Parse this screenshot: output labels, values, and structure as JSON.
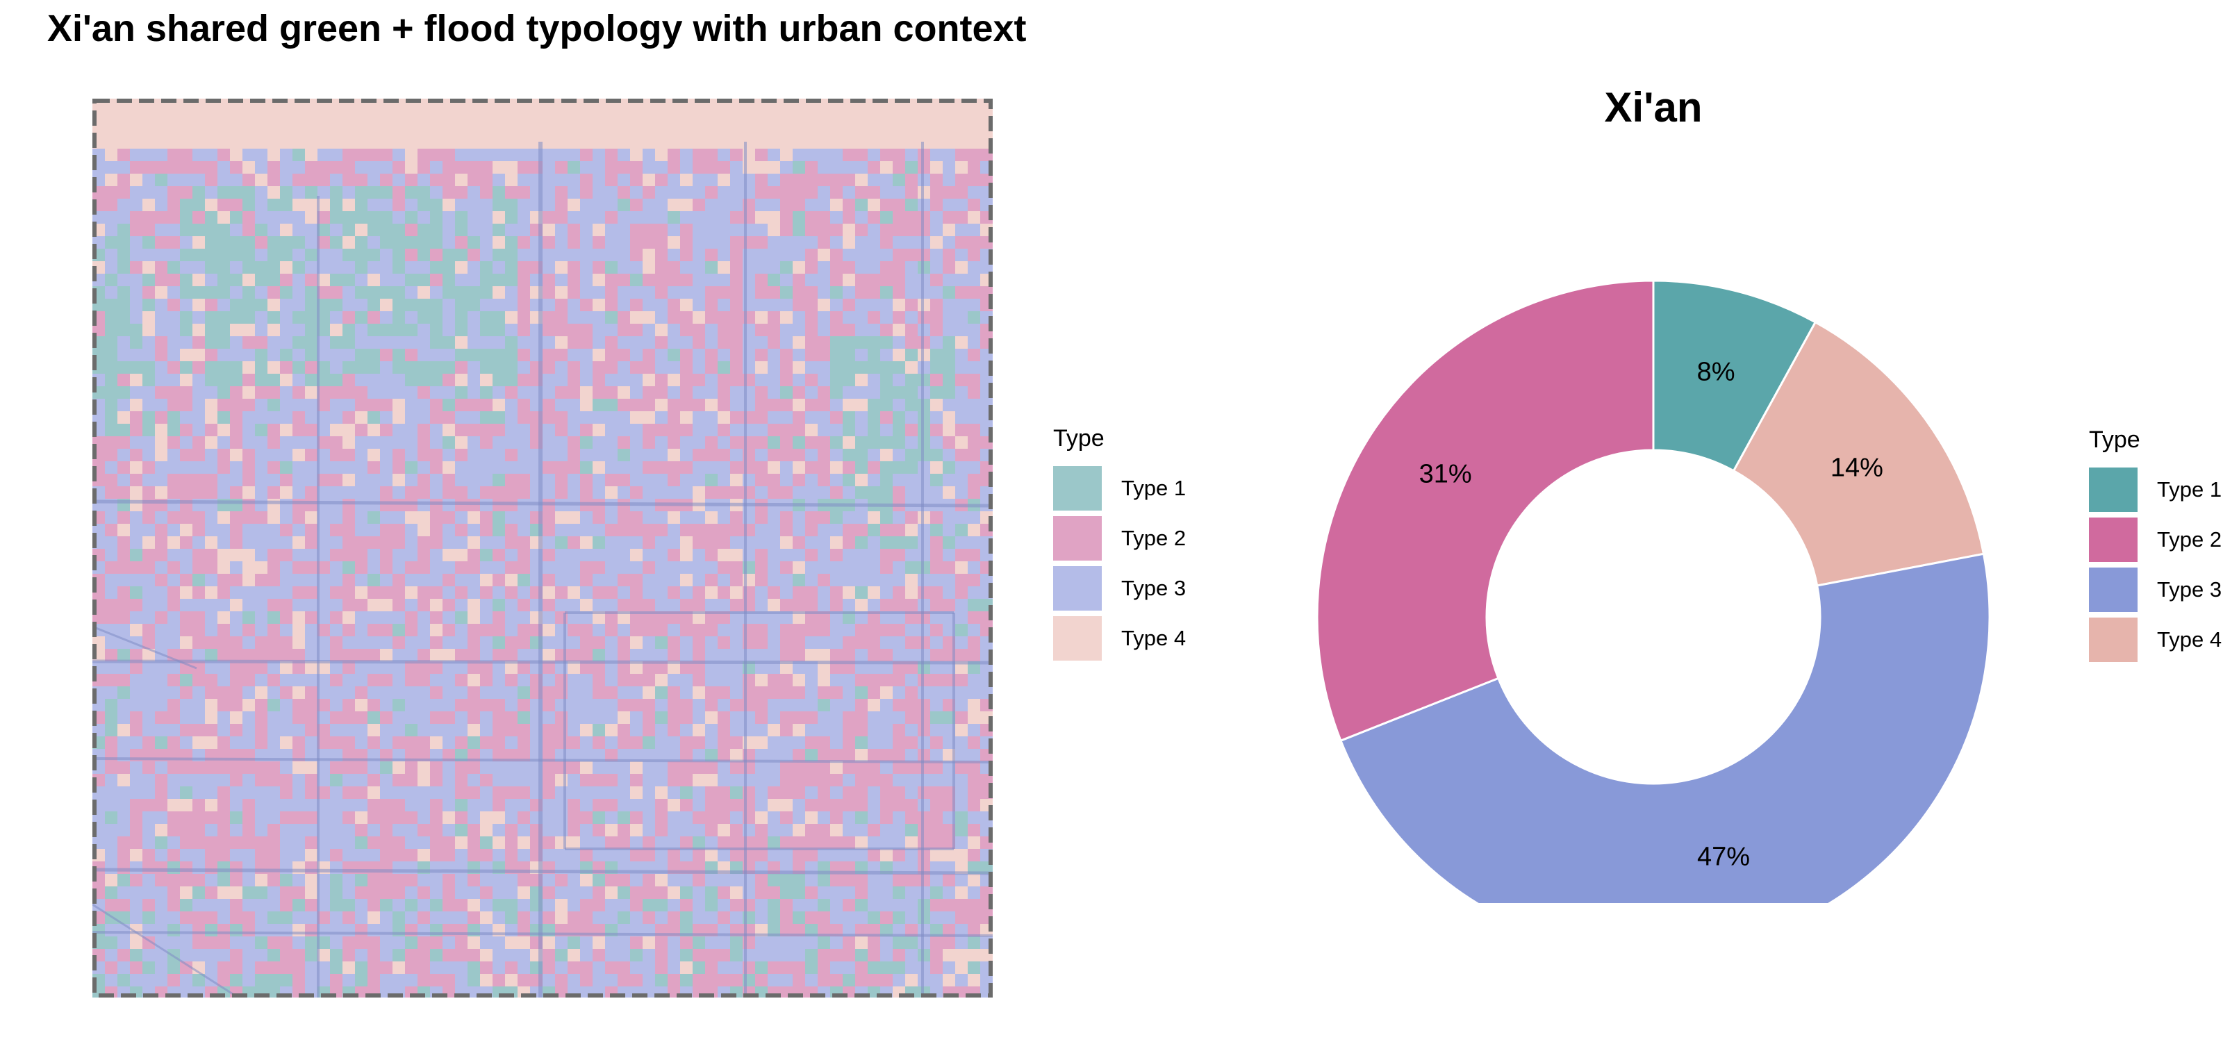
{
  "page_title": "Xi'an shared green + flood typology with urban context",
  "map_legend": {
    "title": "Type",
    "items": [
      {
        "label": "Type 1",
        "color": "#9BC7C9"
      },
      {
        "label": "Type 2",
        "color": "#E0A3C4"
      },
      {
        "label": "Type 3",
        "color": "#B4BCE8"
      },
      {
        "label": "Type 4",
        "color": "#F2D4CF"
      }
    ]
  },
  "chart_data": {
    "type": "pie",
    "donut": true,
    "title": "Xi'an",
    "legend_title": "Type",
    "legend_position": "right",
    "slices": [
      {
        "name": "Type 1",
        "value": 8,
        "label": "8%",
        "color": "#5BA6AA"
      },
      {
        "name": "Type 4",
        "value": 14,
        "label": "14%",
        "color": "#E6B4AC"
      },
      {
        "name": "Type 3",
        "value": 47,
        "label": "47%",
        "color": "#8899D8"
      },
      {
        "name": "Type 2",
        "value": 31,
        "label": "31%",
        "color": "#D06A9E"
      }
    ],
    "legend_order": [
      "Type 1",
      "Type 2",
      "Type 3",
      "Type 4"
    ]
  }
}
